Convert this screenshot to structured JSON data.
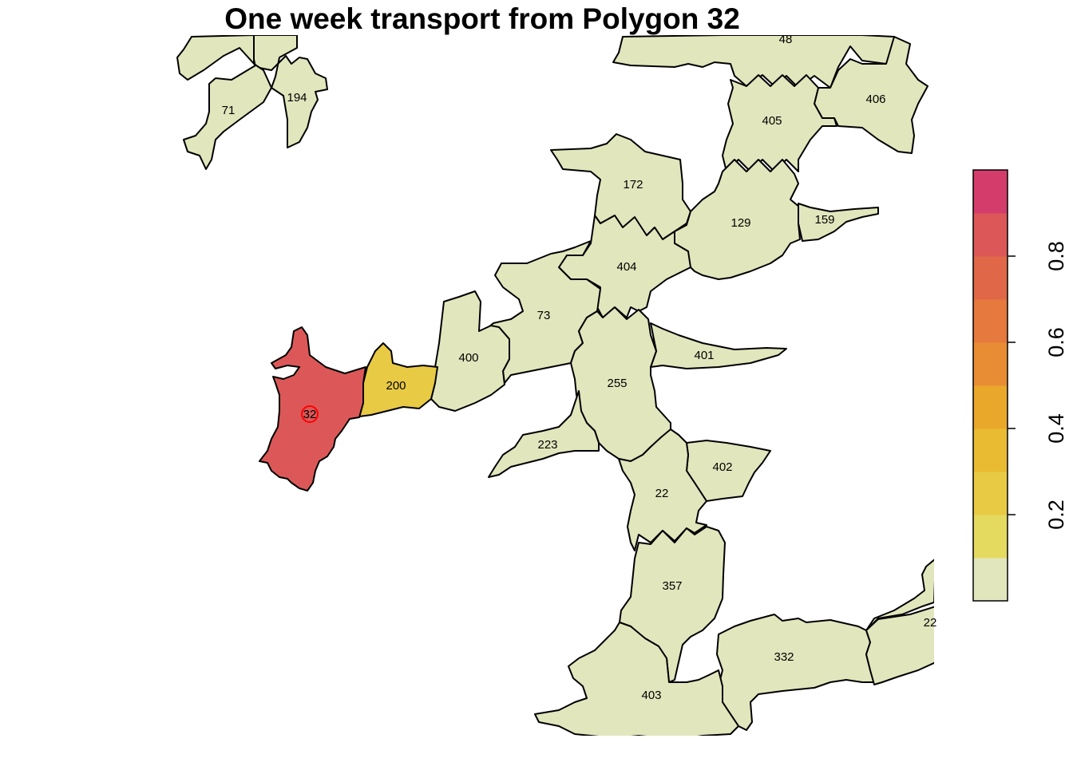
{
  "title": "One week transport from Polygon 32",
  "source_polygon": "32",
  "source_marker_color": "#ff0000",
  "default_fill": "#e2e6bd",
  "polygons": [
    {
      "id": "48",
      "label": "48",
      "value": 0.0
    },
    {
      "id": "194",
      "label": "194",
      "value": 0.0
    },
    {
      "id": "71",
      "label": "71",
      "value": 0.0
    },
    {
      "id": "406",
      "label": "406",
      "value": 0.0
    },
    {
      "id": "405",
      "label": "405",
      "value": 0.0
    },
    {
      "id": "172",
      "label": "172",
      "value": 0.0
    },
    {
      "id": "129",
      "label": "129",
      "value": 0.0
    },
    {
      "id": "159",
      "label": "159",
      "value": 0.0
    },
    {
      "id": "404",
      "label": "404",
      "value": 0.0
    },
    {
      "id": "73",
      "label": "73",
      "value": 0.0
    },
    {
      "id": "400",
      "label": "400",
      "value": 0.0
    },
    {
      "id": "401",
      "label": "401",
      "value": 0.0
    },
    {
      "id": "200",
      "label": "200",
      "value": 0.22
    },
    {
      "id": "32",
      "label": "32",
      "value": 0.82
    },
    {
      "id": "255",
      "label": "255",
      "value": 0.0
    },
    {
      "id": "223",
      "label": "223",
      "value": 0.0
    },
    {
      "id": "402",
      "label": "402",
      "value": 0.0
    },
    {
      "id": "22",
      "label": "22",
      "value": 0.0
    },
    {
      "id": "357",
      "label": "357",
      "value": 0.0
    },
    {
      "id": "332",
      "label": "332",
      "value": 0.0
    },
    {
      "id": "403",
      "label": "403",
      "value": 0.0
    },
    {
      "id": "22b",
      "label": "22",
      "value": 0.0
    }
  ],
  "legend": {
    "min": 0.0,
    "max": 1.0,
    "ticks": [
      "0.2",
      "0.4",
      "0.6",
      "0.8"
    ],
    "tick_values": [
      0.2,
      0.4,
      0.6,
      0.8
    ],
    "colors": [
      "#e2e6bd",
      "#e5da60",
      "#e8ca45",
      "#e9bb32",
      "#eaa82a",
      "#e88d34",
      "#e5793e",
      "#e06848",
      "#dc5858",
      "#d43d6b"
    ]
  }
}
